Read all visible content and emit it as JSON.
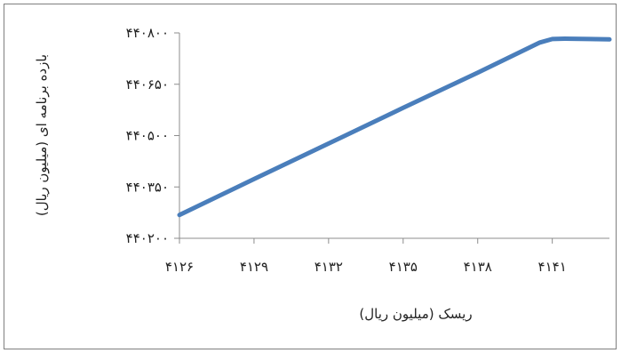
{
  "chart_data": {
    "type": "line",
    "xlabel": "ریسک (میلیون ریال)",
    "ylabel": "بازده برنامه ای (میلیون ریال)",
    "x_tick_labels": [
      "۴۱۲۶",
      "۴۱۲۹",
      "۴۱۳۲",
      "۴۱۳۵",
      "۴۱۳۸",
      "۴۱۴۱"
    ],
    "y_tick_labels": [
      "۴۴۰۲۰۰",
      "۴۴۰۳۵۰",
      "۴۴۰۵۰۰",
      "۴۴۰۶۵۰",
      "۴۴۰۸۰۰"
    ],
    "x_ticks": [
      4126,
      4129,
      4132,
      4135,
      4138,
      4141
    ],
    "y_ticks": [
      440200,
      440350,
      440500,
      440650,
      440800
    ],
    "xlim": [
      4126,
      4143.3
    ],
    "ylim": [
      440200,
      440800
    ],
    "grid": false,
    "legend": "none",
    "series_color": "#4a7ebb",
    "series": [
      {
        "x": [
          4126,
          4129,
          4132,
          4135,
          4138,
          4140.5,
          4141.0,
          4141.5,
          4142.5,
          4143.3
        ],
        "y": [
          440268,
          440373,
          440477,
          440581,
          440684,
          440772,
          440782,
          440783,
          440782,
          440781
        ]
      }
    ]
  }
}
